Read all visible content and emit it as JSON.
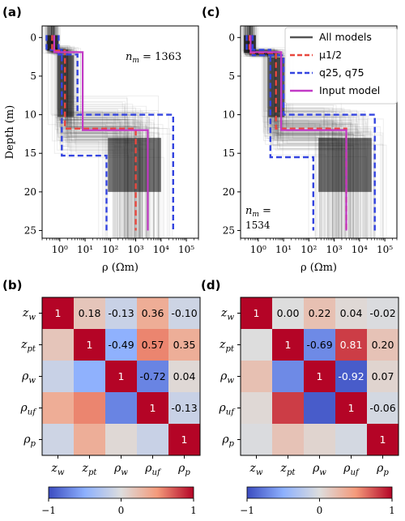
{
  "chart_data": [
    {
      "panel": "(a)",
      "type": "line",
      "xlabel": "ρ (Ωm)",
      "ylabel": "Depth (m)",
      "xscale": "log",
      "xlim": [
        0.2,
        300000
      ],
      "ylim": [
        26,
        -1.5
      ],
      "xticks": [
        1,
        10,
        100,
        1000,
        10000,
        100000
      ],
      "xtick_labels": [
        "10⁰",
        "10¹",
        "10²",
        "10³",
        "10⁴",
        "10⁵"
      ],
      "yticks": [
        0,
        5,
        10,
        15,
        20,
        25
      ],
      "annotation": "n_m = 1363",
      "legend": false,
      "series": [
        {
          "name": "μ1/2",
          "color": "#e8473e",
          "dash": "dashed",
          "points": [
            [
              0.5,
              -0.3
            ],
            [
              0.5,
              1.7
            ],
            [
              1.6,
              1.7
            ],
            [
              1.6,
              11.8
            ],
            [
              1000,
              11.8
            ],
            [
              1000,
              25
            ]
          ]
        },
        {
          "name": "q25, q75",
          "color": "#3444e0",
          "dash": "dashed",
          "points": [
            [
              0.3,
              -0.3
            ],
            [
              0.3,
              1.6
            ],
            [
              1.2,
              1.6
            ],
            [
              1.2,
              15.3
            ],
            [
              70,
              15.3
            ],
            [
              70,
              25
            ]
          ]
        },
        {
          "name": "q25, q75",
          "color": "#3444e0",
          "dash": "dashed",
          "points": [
            [
              0.9,
              -0.3
            ],
            [
              0.9,
              2.2
            ],
            [
              5,
              2.2
            ],
            [
              5,
              10
            ],
            [
              30000,
              10
            ],
            [
              30000,
              25
            ]
          ]
        },
        {
          "name": "Input model",
          "color": "#c23ac6",
          "dash": "solid",
          "points": [
            [
              0.6,
              -0.3
            ],
            [
              0.6,
              1.9
            ],
            [
              8,
              1.9
            ],
            [
              8,
              12
            ],
            [
              3000,
              12
            ],
            [
              3000,
              25
            ]
          ]
        }
      ]
    },
    {
      "panel": "(c)",
      "type": "line",
      "xlabel": "ρ (Ωm)",
      "xscale": "log",
      "xlim": [
        0.2,
        300000
      ],
      "ylim": [
        26,
        -1.5
      ],
      "xticks": [
        1,
        10,
        100,
        1000,
        10000,
        100000
      ],
      "xtick_labels": [
        "10⁰",
        "10¹",
        "10²",
        "10³",
        "10⁴",
        "10⁵"
      ],
      "yticks": [
        0,
        5,
        10,
        15,
        20,
        25
      ],
      "annotation": "n_m = 1534",
      "legend": true,
      "legend_position": "top-right",
      "legend_entries": [
        {
          "label": "All models",
          "color": "#555555",
          "dash": "solid"
        },
        {
          "label": "μ1/2",
          "color": "#e8473e",
          "dash": "dashed"
        },
        {
          "label": "q25, q75",
          "color": "#3444e0",
          "dash": "dashed"
        },
        {
          "label": "Input model",
          "color": "#c23ac6",
          "dash": "solid"
        }
      ],
      "series": [
        {
          "name": "μ1/2",
          "color": "#e8473e",
          "dash": "dashed",
          "points": [
            [
              0.45,
              -0.3
            ],
            [
              0.45,
              2.0
            ],
            [
              5,
              2.0
            ],
            [
              5,
              11.8
            ],
            [
              3000,
              11.8
            ],
            [
              3000,
              25
            ]
          ]
        },
        {
          "name": "q25, q75",
          "color": "#3444e0",
          "dash": "dashed",
          "points": [
            [
              0.35,
              -0.3
            ],
            [
              0.35,
              1.6
            ],
            [
              3,
              1.6
            ],
            [
              3,
              15.5
            ],
            [
              150,
              15.5
            ],
            [
              150,
              25
            ]
          ]
        },
        {
          "name": "q25, q75",
          "color": "#3444e0",
          "dash": "dashed",
          "points": [
            [
              0.6,
              -0.3
            ],
            [
              0.6,
              2.3
            ],
            [
              10,
              2.3
            ],
            [
              10,
              10
            ],
            [
              40000,
              10
            ],
            [
              40000,
              25
            ]
          ]
        },
        {
          "name": "Input model",
          "color": "#c23ac6",
          "dash": "solid",
          "points": [
            [
              0.5,
              -0.3
            ],
            [
              0.5,
              1.9
            ],
            [
              8,
              1.9
            ],
            [
              8,
              12
            ],
            [
              3000,
              12
            ],
            [
              3000,
              25
            ]
          ]
        }
      ]
    },
    {
      "panel": "(b)",
      "type": "heatmap",
      "labels": [
        "z_w",
        "z_pt",
        "ρ_w",
        "ρ_uf",
        "ρ_p"
      ],
      "values": [
        [
          1,
          0.18,
          -0.13,
          0.36,
          -0.1
        ],
        [
          0.18,
          1,
          -0.49,
          0.57,
          0.35
        ],
        [
          -0.13,
          -0.49,
          1,
          -0.72,
          0.04
        ],
        [
          0.36,
          0.57,
          -0.72,
          1,
          -0.13
        ],
        [
          -0.1,
          0.35,
          0.04,
          -0.13,
          1
        ]
      ],
      "cell_labels": [
        [
          "1",
          "0.18",
          "-0.13",
          "0.36",
          "-0.10"
        ],
        [
          "",
          "1",
          "-0.49",
          "0.57",
          "0.35"
        ],
        [
          "",
          "",
          "1",
          "-0.72",
          "0.04"
        ],
        [
          "",
          "",
          "",
          "1",
          "-0.13"
        ],
        [
          "",
          "",
          "",
          "",
          "1"
        ]
      ],
      "colorbar": {
        "min": -1,
        "max": 1,
        "ticks": [
          "−1",
          "0",
          "1"
        ],
        "colormap": "coolwarm"
      }
    },
    {
      "panel": "(d)",
      "type": "heatmap",
      "labels": [
        "z_w",
        "z_pt",
        "ρ_w",
        "ρ_uf",
        "ρ_p"
      ],
      "values": [
        [
          1,
          0.0,
          0.22,
          0.04,
          -0.02
        ],
        [
          0.0,
          1,
          -0.69,
          0.81,
          0.2
        ],
        [
          0.22,
          -0.69,
          1,
          -0.92,
          0.07
        ],
        [
          0.04,
          0.81,
          -0.92,
          1,
          -0.06
        ],
        [
          -0.02,
          0.2,
          0.07,
          -0.06,
          1
        ]
      ],
      "cell_labels": [
        [
          "1",
          "0.00",
          "0.22",
          "0.04",
          "-0.02"
        ],
        [
          "",
          "1",
          "-0.69",
          "0.81",
          "0.20"
        ],
        [
          "",
          "",
          "1",
          "-0.92",
          "0.07"
        ],
        [
          "",
          "",
          "",
          "1",
          "-0.06"
        ],
        [
          "",
          "",
          "",
          "",
          "1"
        ]
      ],
      "colorbar": {
        "min": -1,
        "max": 1,
        "ticks": [
          "−1",
          "0",
          "1"
        ],
        "colormap": "coolwarm"
      }
    }
  ]
}
